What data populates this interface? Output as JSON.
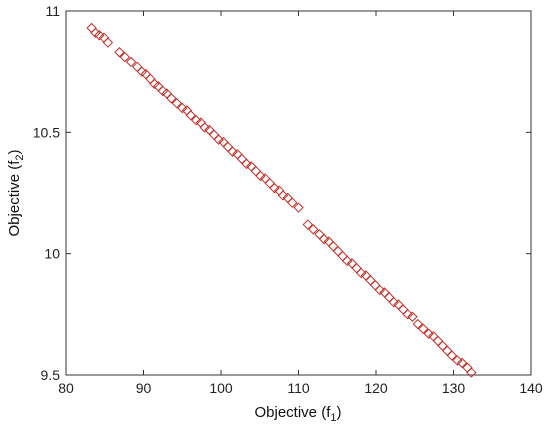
{
  "chart_data": {
    "type": "scatter",
    "title": "",
    "xlabel_main": "Objective (f",
    "xlabel_sub": "1",
    "xlabel_close": ")",
    "ylabel_main": "Objective (f",
    "ylabel_sub": "2",
    "ylabel_close": ")",
    "xlim": [
      80,
      140
    ],
    "ylim": [
      9.5,
      11
    ],
    "xticks": [
      "80",
      "90",
      "100",
      "110",
      "120",
      "130",
      "140"
    ],
    "yticks": [
      "9.5",
      "10",
      "10.5",
      "11"
    ],
    "xtick_values": [
      80,
      90,
      100,
      110,
      120,
      130,
      140
    ],
    "ytick_values": [
      9.5,
      10,
      10.5,
      11
    ],
    "marker": "diamond-open",
    "color": "#c0302a",
    "grid": false,
    "legend": "none",
    "series": [
      {
        "x": [
          83.3,
          83.8,
          84.3,
          84.9,
          85.4,
          86.9,
          87.6,
          88.4,
          89.2,
          89.8,
          90.3,
          90.9,
          91.4,
          91.9,
          92.5,
          93.0,
          93.6,
          94.3,
          95.0,
          95.6,
          96.1,
          96.8,
          97.4,
          97.9,
          98.5,
          99.1,
          99.7,
          100.3,
          100.9,
          101.5,
          102.1,
          102.7,
          103.3,
          103.9,
          104.5,
          105.1,
          105.7,
          106.3,
          106.9,
          107.5,
          108.0,
          108.6,
          109.2,
          110.0,
          111.2,
          111.9,
          112.7,
          113.3,
          113.9,
          114.5,
          115.1,
          115.7,
          116.3,
          116.9,
          117.5,
          118.1,
          118.7,
          119.3,
          119.9,
          120.5,
          121.1,
          121.7,
          122.3,
          122.9,
          123.5,
          124.1,
          124.7,
          125.4,
          126.1,
          126.8,
          127.4,
          128.0,
          128.6,
          129.2,
          129.8,
          130.5,
          131.1,
          131.8,
          132.3
        ],
        "y": [
          10.93,
          10.91,
          10.9,
          10.89,
          10.87,
          10.83,
          10.81,
          10.79,
          10.77,
          10.75,
          10.74,
          10.72,
          10.7,
          10.69,
          10.67,
          10.66,
          10.64,
          10.62,
          10.6,
          10.59,
          10.57,
          10.55,
          10.54,
          10.52,
          10.51,
          10.49,
          10.47,
          10.46,
          10.44,
          10.42,
          10.41,
          10.39,
          10.37,
          10.36,
          10.34,
          10.32,
          10.31,
          10.29,
          10.27,
          10.26,
          10.24,
          10.23,
          10.21,
          10.19,
          10.12,
          10.1,
          10.08,
          10.06,
          10.05,
          10.03,
          10.01,
          9.99,
          9.97,
          9.96,
          9.94,
          9.92,
          9.91,
          9.89,
          9.87,
          9.85,
          9.84,
          9.82,
          9.8,
          9.79,
          9.77,
          9.75,
          9.74,
          9.71,
          9.69,
          9.67,
          9.66,
          9.64,
          9.62,
          9.6,
          9.58,
          9.56,
          9.55,
          9.53,
          9.51
        ]
      }
    ]
  }
}
